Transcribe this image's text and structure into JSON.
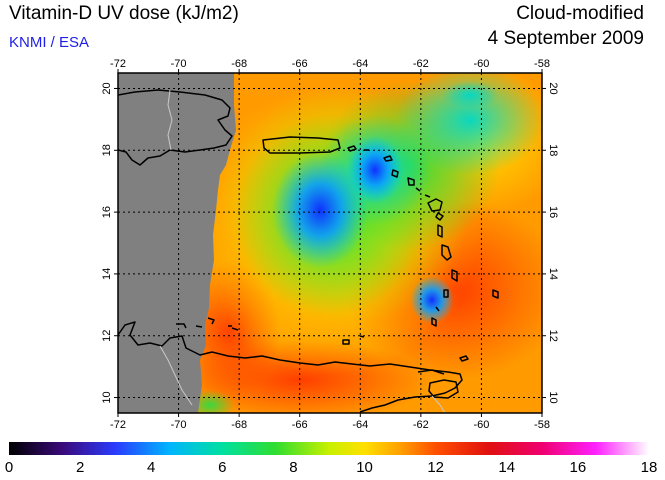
{
  "header": {
    "title": "Vitamin-D UV dose (kJ/m2)",
    "credit": "KNMI / ESA",
    "product": "Cloud-modified",
    "date": "4 September 2009"
  },
  "map": {
    "lon_ticks": [
      "-72",
      "-70",
      "-68",
      "-66",
      "-64",
      "-62",
      "-60",
      "-58"
    ],
    "lat_ticks": [
      "20",
      "18",
      "16",
      "14",
      "12",
      "10"
    ],
    "lon_range": [
      -72,
      -58
    ],
    "lat_range": [
      9.5,
      20.5
    ],
    "no_data_color": "#808080",
    "graticule": "dotted black, every 2 degrees",
    "coastline_color": "#000000",
    "border_color": "#c8c8c8",
    "gridlines": true
  },
  "colorbar": {
    "labels": [
      "0",
      "2",
      "4",
      "6",
      "8",
      "10",
      "12",
      "14",
      "16",
      "18"
    ],
    "range": [
      0,
      18
    ],
    "stops": [
      {
        "v": 0,
        "c": "#000000"
      },
      {
        "v": 1.5,
        "c": "#3a0a7a"
      },
      {
        "v": 3,
        "c": "#2a3cff"
      },
      {
        "v": 4.5,
        "c": "#00b4ff"
      },
      {
        "v": 6,
        "c": "#00e0a0"
      },
      {
        "v": 7.5,
        "c": "#30dd30"
      },
      {
        "v": 9,
        "c": "#c8f000"
      },
      {
        "v": 10,
        "c": "#ffe000"
      },
      {
        "v": 11,
        "c": "#ffa000"
      },
      {
        "v": 12,
        "c": "#ff5000"
      },
      {
        "v": 13.5,
        "c": "#e01010"
      },
      {
        "v": 15,
        "c": "#f00070"
      },
      {
        "v": 16.5,
        "c": "#ff20ff"
      },
      {
        "v": 18,
        "c": "#ffffff"
      }
    ]
  }
}
